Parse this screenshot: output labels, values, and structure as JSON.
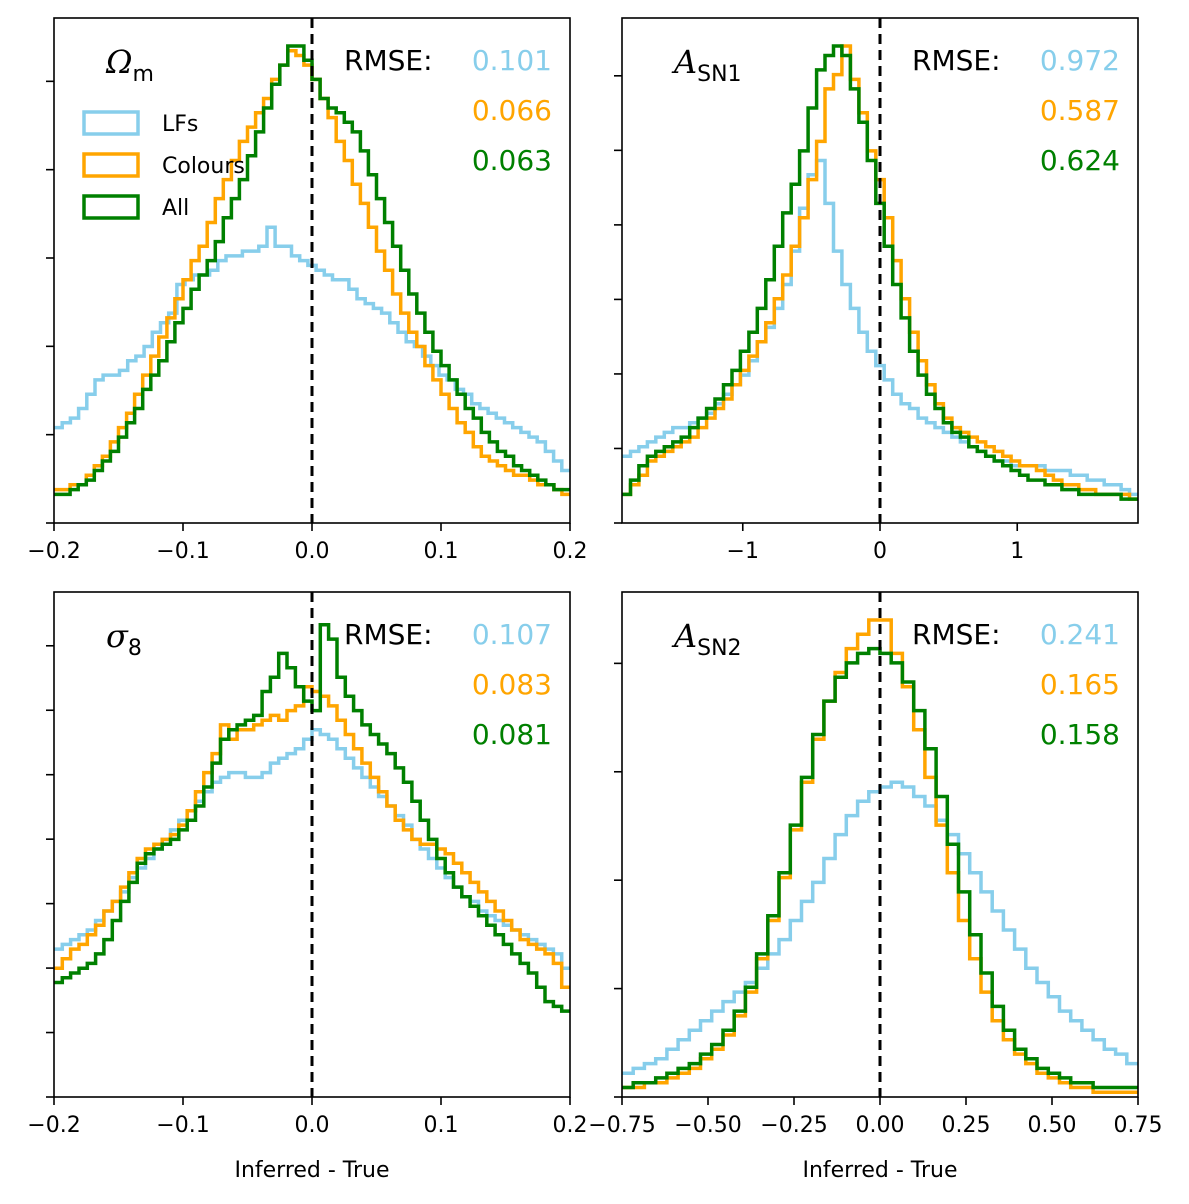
{
  "colors": {
    "lfs": "#87CEEB",
    "colours": "#FFA500",
    "all": "#008000",
    "zero_line": "#000000"
  },
  "legend": [
    {
      "key": "lfs",
      "label": "LFs"
    },
    {
      "key": "colours",
      "label": "Colours"
    },
    {
      "key": "all",
      "label": "All"
    }
  ],
  "rmse_label": "RMSE:",
  "xlabel": "Inferred - True",
  "chart_data": [
    {
      "type": "histogram",
      "panel": "top-left",
      "param_label": {
        "base": "Ω",
        "sub": "m"
      },
      "xlim": [
        -0.2,
        0.2
      ],
      "xticks": [
        -0.2,
        -0.1,
        0.0,
        0.1,
        0.2
      ],
      "xtick_labels": [
        "−0.2",
        "−0.1",
        "0.0",
        "0.1",
        "0.2"
      ],
      "xlabel": "",
      "yticks_count": 6,
      "ymax": 1.0,
      "rmse": [
        {
          "key": "lfs",
          "value": "0.101"
        },
        {
          "key": "colours",
          "value": "0.066"
        },
        {
          "key": "all",
          "value": "0.063"
        }
      ],
      "show_legend": true,
      "series": [
        {
          "key": "lfs",
          "name": "LFs",
          "values": [
            0.2,
            0.21,
            0.22,
            0.24,
            0.27,
            0.3,
            0.31,
            0.31,
            0.32,
            0.34,
            0.35,
            0.37,
            0.4,
            0.42,
            0.44,
            0.5,
            0.51,
            0.52,
            0.52,
            0.53,
            0.55,
            0.56,
            0.56,
            0.57,
            0.57,
            0.58,
            0.62,
            0.58,
            0.58,
            0.56,
            0.55,
            0.54,
            0.53,
            0.52,
            0.51,
            0.51,
            0.49,
            0.47,
            0.46,
            0.45,
            0.44,
            0.42,
            0.4,
            0.38,
            0.37,
            0.35,
            0.33,
            0.31,
            0.3,
            0.28,
            0.27,
            0.25,
            0.24,
            0.23,
            0.22,
            0.21,
            0.2,
            0.19,
            0.18,
            0.17,
            0.15,
            0.13,
            0.11
          ]
        },
        {
          "key": "colours",
          "name": "Colours",
          "values": [
            0.07,
            0.07,
            0.08,
            0.08,
            0.1,
            0.12,
            0.14,
            0.17,
            0.2,
            0.23,
            0.27,
            0.31,
            0.35,
            0.39,
            0.43,
            0.47,
            0.51,
            0.55,
            0.58,
            0.63,
            0.68,
            0.72,
            0.76,
            0.8,
            0.83,
            0.86,
            0.89,
            0.93,
            0.96,
            0.99,
            0.98,
            0.96,
            0.93,
            0.89,
            0.85,
            0.8,
            0.76,
            0.71,
            0.67,
            0.62,
            0.57,
            0.53,
            0.48,
            0.44,
            0.4,
            0.37,
            0.33,
            0.3,
            0.27,
            0.24,
            0.21,
            0.19,
            0.16,
            0.14,
            0.13,
            0.12,
            0.11,
            0.1,
            0.1,
            0.09,
            0.08,
            0.08,
            0.07,
            0.06
          ]
        },
        {
          "key": "all",
          "name": "All",
          "values": [
            0.06,
            0.06,
            0.07,
            0.08,
            0.09,
            0.11,
            0.13,
            0.15,
            0.18,
            0.21,
            0.24,
            0.28,
            0.31,
            0.34,
            0.38,
            0.42,
            0.45,
            0.49,
            0.52,
            0.55,
            0.59,
            0.64,
            0.68,
            0.72,
            0.77,
            0.82,
            0.87,
            0.92,
            0.96,
            1.0,
            1.0,
            0.97,
            0.93,
            0.89,
            0.87,
            0.86,
            0.84,
            0.82,
            0.78,
            0.73,
            0.68,
            0.63,
            0.58,
            0.53,
            0.48,
            0.44,
            0.4,
            0.36,
            0.33,
            0.3,
            0.27,
            0.24,
            0.22,
            0.19,
            0.17,
            0.15,
            0.14,
            0.12,
            0.11,
            0.1,
            0.09,
            0.08,
            0.07,
            0.07
          ]
        }
      ]
    },
    {
      "type": "histogram",
      "panel": "top-right",
      "param_label": {
        "base": "A",
        "sub": "SN1"
      },
      "xlim": [
        -1.88,
        1.88
      ],
      "xticks": [
        -1,
        0,
        1
      ],
      "xtick_labels": [
        "−1",
        "0",
        "1"
      ],
      "xlabel": "",
      "yticks_count": 7,
      "ymax": 1.0,
      "rmse": [
        {
          "key": "lfs",
          "value": "0.972"
        },
        {
          "key": "colours",
          "value": "0.587"
        },
        {
          "key": "all",
          "value": "0.624"
        }
      ],
      "show_legend": false,
      "series": [
        {
          "key": "lfs",
          "name": "LFs",
          "values": [
            0.14,
            0.15,
            0.16,
            0.17,
            0.18,
            0.19,
            0.2,
            0.2,
            0.21,
            0.22,
            0.23,
            0.25,
            0.27,
            0.29,
            0.31,
            0.34,
            0.38,
            0.41,
            0.45,
            0.5,
            0.57,
            0.66,
            0.73,
            0.76,
            0.67,
            0.57,
            0.5,
            0.45,
            0.4,
            0.36,
            0.33,
            0.3,
            0.27,
            0.25,
            0.24,
            0.22,
            0.21,
            0.2,
            0.19,
            0.18,
            0.17,
            0.16,
            0.15,
            0.14,
            0.13,
            0.13,
            0.12,
            0.12,
            0.12,
            0.12,
            0.11,
            0.11,
            0.11,
            0.1,
            0.1,
            0.09,
            0.09,
            0.08,
            0.08,
            0.07,
            0.06
          ]
        },
        {
          "key": "colours",
          "name": "Colours",
          "values": [
            0.06,
            0.08,
            0.1,
            0.13,
            0.14,
            0.15,
            0.16,
            0.17,
            0.18,
            0.2,
            0.22,
            0.24,
            0.26,
            0.29,
            0.32,
            0.35,
            0.38,
            0.42,
            0.47,
            0.52,
            0.58,
            0.64,
            0.72,
            0.8,
            0.91,
            0.94,
            1.0,
            0.93,
            0.86,
            0.78,
            0.72,
            0.64,
            0.55,
            0.47,
            0.4,
            0.34,
            0.29,
            0.25,
            0.22,
            0.2,
            0.19,
            0.18,
            0.17,
            0.16,
            0.15,
            0.14,
            0.13,
            0.12,
            0.12,
            0.11,
            0.1,
            0.09,
            0.08,
            0.08,
            0.07,
            0.07,
            0.06,
            0.06,
            0.06,
            0.06,
            0.05
          ]
        },
        {
          "key": "all",
          "name": "All",
          "values": [
            0.06,
            0.09,
            0.12,
            0.14,
            0.15,
            0.16,
            0.17,
            0.18,
            0.2,
            0.22,
            0.24,
            0.26,
            0.29,
            0.32,
            0.36,
            0.4,
            0.45,
            0.51,
            0.58,
            0.65,
            0.71,
            0.78,
            0.87,
            0.95,
            0.98,
            1.0,
            0.98,
            0.91,
            0.84,
            0.76,
            0.67,
            0.58,
            0.5,
            0.43,
            0.36,
            0.31,
            0.27,
            0.24,
            0.21,
            0.19,
            0.18,
            0.16,
            0.15,
            0.14,
            0.13,
            0.12,
            0.11,
            0.1,
            0.09,
            0.09,
            0.08,
            0.08,
            0.07,
            0.07,
            0.06,
            0.06,
            0.06,
            0.06,
            0.06,
            0.05,
            0.05
          ]
        }
      ]
    },
    {
      "type": "histogram",
      "panel": "bottom-left",
      "param_label": {
        "base": "σ",
        "sub": "8"
      },
      "xlim": [
        -0.2,
        0.2
      ],
      "xticks": [
        -0.2,
        -0.1,
        0.0,
        0.1,
        0.2
      ],
      "xtick_labels": [
        "−0.2",
        "−0.1",
        "0.0",
        "0.1",
        "0.2"
      ],
      "xlabel": "Inferred - True",
      "yticks_count": 8,
      "ymax": 1.0,
      "rmse": [
        {
          "key": "lfs",
          "value": "0.107"
        },
        {
          "key": "colours",
          "value": "0.083"
        },
        {
          "key": "all",
          "value": "0.081"
        }
      ],
      "show_legend": false,
      "series": [
        {
          "key": "lfs",
          "name": "LFs",
          "values": [
            0.31,
            0.32,
            0.33,
            0.34,
            0.35,
            0.37,
            0.39,
            0.41,
            0.43,
            0.46,
            0.48,
            0.5,
            0.52,
            0.54,
            0.56,
            0.58,
            0.6,
            0.62,
            0.64,
            0.66,
            0.67,
            0.68,
            0.68,
            0.67,
            0.67,
            0.68,
            0.7,
            0.71,
            0.72,
            0.73,
            0.75,
            0.77,
            0.76,
            0.75,
            0.73,
            0.71,
            0.69,
            0.67,
            0.65,
            0.63,
            0.61,
            0.59,
            0.57,
            0.54,
            0.52,
            0.5,
            0.48,
            0.46,
            0.44,
            0.42,
            0.41,
            0.39,
            0.38,
            0.37,
            0.36,
            0.35,
            0.34,
            0.33,
            0.32,
            0.31,
            0.3,
            0.27
          ]
        },
        {
          "key": "colours",
          "name": "Colours",
          "values": [
            0.27,
            0.29,
            0.31,
            0.32,
            0.34,
            0.36,
            0.39,
            0.41,
            0.44,
            0.47,
            0.5,
            0.52,
            0.53,
            0.54,
            0.55,
            0.57,
            0.6,
            0.64,
            0.68,
            0.72,
            0.78,
            0.75,
            0.77,
            0.77,
            0.78,
            0.79,
            0.8,
            0.79,
            0.81,
            0.82,
            0.86,
            0.85,
            0.84,
            0.82,
            0.79,
            0.76,
            0.73,
            0.7,
            0.67,
            0.64,
            0.61,
            0.58,
            0.56,
            0.54,
            0.53,
            0.53,
            0.52,
            0.51,
            0.49,
            0.47,
            0.45,
            0.43,
            0.41,
            0.39,
            0.37,
            0.35,
            0.33,
            0.32,
            0.31,
            0.3,
            0.28,
            0.23
          ]
        },
        {
          "key": "all",
          "name": "All",
          "values": [
            0.24,
            0.25,
            0.26,
            0.27,
            0.28,
            0.3,
            0.33,
            0.37,
            0.41,
            0.45,
            0.49,
            0.51,
            0.52,
            0.53,
            0.54,
            0.56,
            0.58,
            0.61,
            0.65,
            0.7,
            0.75,
            0.77,
            0.78,
            0.79,
            0.8,
            0.85,
            0.88,
            0.93,
            0.9,
            0.86,
            0.83,
            0.81,
            0.99,
            0.96,
            0.88,
            0.84,
            0.81,
            0.78,
            0.76,
            0.74,
            0.72,
            0.69,
            0.66,
            0.62,
            0.58,
            0.54,
            0.5,
            0.47,
            0.44,
            0.42,
            0.4,
            0.38,
            0.36,
            0.34,
            0.32,
            0.3,
            0.28,
            0.26,
            0.23,
            0.2,
            0.19,
            0.18
          ]
        }
      ]
    },
    {
      "type": "histogram",
      "panel": "bottom-right",
      "param_label": {
        "base": "A",
        "sub": "SN2"
      },
      "xlim": [
        -0.75,
        0.75
      ],
      "xticks": [
        -0.75,
        -0.5,
        -0.25,
        0.0,
        0.25,
        0.5,
        0.75
      ],
      "xtick_labels": [
        "−0.75",
        "−0.50",
        "−0.25",
        "0.00",
        "0.25",
        "0.50",
        "0.75"
      ],
      "xlabel": "Inferred - True",
      "yticks_count": 5,
      "ymax": 1.0,
      "rmse": [
        {
          "key": "lfs",
          "value": "0.241"
        },
        {
          "key": "colours",
          "value": "0.165"
        },
        {
          "key": "all",
          "value": "0.158"
        }
      ],
      "show_legend": false,
      "series": [
        {
          "key": "lfs",
          "name": "LFs",
          "values": [
            0.05,
            0.06,
            0.07,
            0.08,
            0.1,
            0.12,
            0.14,
            0.16,
            0.18,
            0.2,
            0.22,
            0.24,
            0.27,
            0.3,
            0.33,
            0.37,
            0.41,
            0.45,
            0.5,
            0.55,
            0.59,
            0.62,
            0.64,
            0.65,
            0.66,
            0.65,
            0.63,
            0.61,
            0.58,
            0.55,
            0.51,
            0.47,
            0.43,
            0.39,
            0.35,
            0.31,
            0.27,
            0.24,
            0.21,
            0.18,
            0.16,
            0.14,
            0.12,
            0.1,
            0.09,
            0.07
          ]
        },
        {
          "key": "colours",
          "name": "Colours",
          "values": [
            0.02,
            0.02,
            0.03,
            0.03,
            0.04,
            0.05,
            0.06,
            0.08,
            0.1,
            0.13,
            0.17,
            0.22,
            0.29,
            0.37,
            0.46,
            0.56,
            0.66,
            0.75,
            0.83,
            0.89,
            0.94,
            0.97,
            1.0,
            1.0,
            0.93,
            0.86,
            0.77,
            0.67,
            0.57,
            0.47,
            0.37,
            0.29,
            0.22,
            0.16,
            0.12,
            0.09,
            0.07,
            0.05,
            0.04,
            0.03,
            0.02,
            0.02,
            0.01,
            0.01,
            0.01,
            0.01
          ]
        },
        {
          "key": "all",
          "name": "All",
          "values": [
            0.02,
            0.03,
            0.03,
            0.04,
            0.05,
            0.06,
            0.07,
            0.09,
            0.11,
            0.14,
            0.18,
            0.23,
            0.3,
            0.38,
            0.47,
            0.57,
            0.67,
            0.76,
            0.83,
            0.88,
            0.91,
            0.93,
            0.94,
            0.93,
            0.91,
            0.87,
            0.81,
            0.73,
            0.63,
            0.53,
            0.43,
            0.34,
            0.26,
            0.19,
            0.14,
            0.1,
            0.08,
            0.06,
            0.05,
            0.04,
            0.03,
            0.03,
            0.02,
            0.02,
            0.02,
            0.02
          ]
        }
      ]
    }
  ]
}
